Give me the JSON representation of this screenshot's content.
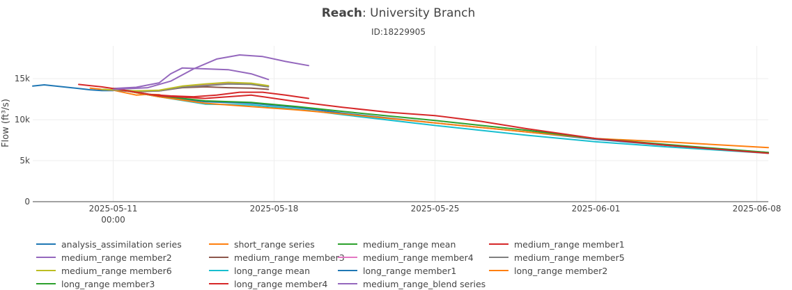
{
  "chart_data": {
    "type": "line",
    "title_bold": "Reach",
    "title_rest": ": University Branch",
    "subtitle": "ID:18229905",
    "ylabel": "Flow (ft³/s)",
    "ylim": [
      0,
      19000
    ],
    "xlim": [
      "2025-05-07T12:00",
      "2025-06-08T12:00"
    ],
    "yticks": [
      {
        "value": 0,
        "label": "0"
      },
      {
        "value": 5000,
        "label": "5k"
      },
      {
        "value": 10000,
        "label": "10k"
      },
      {
        "value": 15000,
        "label": "15k"
      }
    ],
    "xticks": [
      {
        "value": "2025-05-11T00:00",
        "label": "2025-05-11",
        "label2": "00:00"
      },
      {
        "value": "2025-05-18T00:00",
        "label": "2025-05-18",
        "label2": ""
      },
      {
        "value": "2025-05-25T00:00",
        "label": "2025-05-25",
        "label2": ""
      },
      {
        "value": "2025-06-01T00:00",
        "label": "2025-06-01",
        "label2": ""
      },
      {
        "value": "2025-06-08T00:00",
        "label": "2025-06-08",
        "label2": ""
      }
    ],
    "grid": true,
    "legend_position": "bottom",
    "series": [
      {
        "name": "analysis_assimilation series",
        "color": "#1f77b4",
        "x": [
          "2025-05-07T12:00",
          "2025-05-08T00:00",
          "2025-05-08T12:00",
          "2025-05-09T00:00",
          "2025-05-09T12:00",
          "2025-05-10T00:00",
          "2025-05-10T12:00",
          "2025-05-11T00:00"
        ],
        "y": [
          14100,
          14250,
          14100,
          13950,
          13800,
          13650,
          13550,
          13550
        ]
      },
      {
        "name": "short_range series",
        "color": "#ff7f0e",
        "x": [
          "2025-05-10T00:00",
          "2025-05-10T12:00",
          "2025-05-11T00:00",
          "2025-05-11T12:00",
          "2025-05-12T00:00",
          "2025-05-12T12:00",
          "2025-05-13T00:00",
          "2025-05-13T12:00"
        ],
        "y": [
          13850,
          13700,
          13600,
          13300,
          13000,
          13100,
          13050,
          12600
        ]
      },
      {
        "name": "medium_range mean",
        "color": "#2ca02c",
        "x": [
          "2025-05-10T12:00",
          "2025-05-12T00:00",
          "2025-05-13T00:00",
          "2025-05-14T00:00",
          "2025-05-15T00:00",
          "2025-05-16T00:00",
          "2025-05-17T00:00",
          "2025-05-17T18:00"
        ],
        "y": [
          13700,
          13500,
          13550,
          14000,
          14300,
          14500,
          14400,
          14100
        ]
      },
      {
        "name": "medium_range member1",
        "color": "#d62728",
        "x": [
          "2025-05-09T12:00",
          "2025-05-10T12:00",
          "2025-05-11T12:00",
          "2025-05-12T12:00",
          "2025-05-13T12:00",
          "2025-05-14T12:00",
          "2025-05-15T12:00",
          "2025-05-16T12:00",
          "2025-05-17T12:00",
          "2025-05-18T12:00",
          "2025-05-19T12:00"
        ],
        "y": [
          14300,
          14000,
          13600,
          13100,
          12900,
          12800,
          13000,
          13350,
          13350,
          13000,
          12600
        ]
      },
      {
        "name": "medium_range member2",
        "color": "#9467bd",
        "x": [
          "2025-05-11T00:00",
          "2025-05-12T00:00",
          "2025-05-13T00:00",
          "2025-05-13T12:00",
          "2025-05-14T00:00",
          "2025-05-15T00:00",
          "2025-05-16T00:00",
          "2025-05-17T00:00",
          "2025-05-17T18:00"
        ],
        "y": [
          13800,
          13950,
          14500,
          15600,
          16300,
          16200,
          16100,
          15600,
          14900
        ]
      },
      {
        "name": "medium_range member3",
        "color": "#8c564b",
        "x": [
          "2025-05-10T12:00",
          "2025-05-12T00:00",
          "2025-05-13T00:00",
          "2025-05-14T00:00",
          "2025-05-15T00:00",
          "2025-05-16T00:00",
          "2025-05-17T00:00",
          "2025-05-17T18:00"
        ],
        "y": [
          13700,
          13400,
          13500,
          13900,
          14000,
          13900,
          13850,
          13700
        ]
      },
      {
        "name": "medium_range member4",
        "color": "#e377c2",
        "x": [
          "2025-05-10T12:00",
          "2025-05-12T00:00",
          "2025-05-13T00:00",
          "2025-05-14T00:00",
          "2025-05-15T00:00",
          "2025-05-16T00:00",
          "2025-05-17T00:00",
          "2025-05-17T18:00"
        ],
        "y": [
          13700,
          13450,
          13550,
          14050,
          14250,
          14450,
          14350,
          14050
        ]
      },
      {
        "name": "medium_range member5",
        "color": "#7f7f7f",
        "x": [
          "2025-05-10T12:00",
          "2025-05-12T00:00",
          "2025-05-13T00:00",
          "2025-05-14T00:00",
          "2025-05-15T00:00",
          "2025-05-16T00:00",
          "2025-05-17T00:00",
          "2025-05-17T18:00"
        ],
        "y": [
          13700,
          13450,
          13500,
          13950,
          14150,
          14350,
          14300,
          14000
        ]
      },
      {
        "name": "medium_range member6",
        "color": "#bcbd22",
        "x": [
          "2025-05-10T12:00",
          "2025-05-12T00:00",
          "2025-05-13T00:00",
          "2025-05-14T00:00",
          "2025-05-15T00:00",
          "2025-05-16T00:00",
          "2025-05-17T00:00",
          "2025-05-17T18:00"
        ],
        "y": [
          13700,
          13500,
          13600,
          14100,
          14350,
          14550,
          14450,
          14150
        ]
      },
      {
        "name": "long_range mean",
        "color": "#17becf",
        "x": [
          "2025-05-11T00:00",
          "2025-05-13T00:00",
          "2025-05-15T00:00",
          "2025-05-17T00:00",
          "2025-05-19T00:00",
          "2025-05-21T00:00",
          "2025-05-25T00:00",
          "2025-05-29T00:00",
          "2025-06-01T00:00",
          "2025-06-04T00:00",
          "2025-06-08T12:00"
        ],
        "y": [
          13800,
          12800,
          11900,
          11800,
          11300,
          10600,
          9300,
          8100,
          7300,
          6700,
          5900
        ]
      },
      {
        "name": "long_range member1",
        "color": "#1f77b4",
        "x": [
          "2025-05-11T00:00",
          "2025-05-13T00:00",
          "2025-05-15T00:00",
          "2025-05-17T00:00",
          "2025-05-19T00:00",
          "2025-05-21T00:00",
          "2025-05-25T00:00",
          "2025-05-29T00:00",
          "2025-06-01T00:00",
          "2025-06-04T00:00",
          "2025-06-08T12:00"
        ],
        "y": [
          13800,
          12800,
          12200,
          12000,
          11500,
          10800,
          9600,
          8500,
          7600,
          6900,
          6000
        ]
      },
      {
        "name": "long_range member2",
        "color": "#ff7f0e",
        "x": [
          "2025-05-11T00:00",
          "2025-05-13T00:00",
          "2025-05-15T00:00",
          "2025-05-17T00:00",
          "2025-05-19T00:00",
          "2025-05-21T00:00",
          "2025-05-25T00:00",
          "2025-05-29T00:00",
          "2025-06-01T00:00",
          "2025-06-04T00:00",
          "2025-06-08T12:00"
        ],
        "y": [
          13800,
          12800,
          12000,
          11600,
          11200,
          10700,
          9600,
          8500,
          7700,
          7300,
          6600
        ]
      },
      {
        "name": "long_range member3",
        "color": "#2ca02c",
        "x": [
          "2025-05-11T00:00",
          "2025-05-13T00:00",
          "2025-05-15T00:00",
          "2025-05-17T00:00",
          "2025-05-19T00:00",
          "2025-05-21T00:00",
          "2025-05-25T00:00",
          "2025-05-29T00:00",
          "2025-06-01T00:00",
          "2025-06-04T00:00",
          "2025-06-08T12:00"
        ],
        "y": [
          13800,
          12900,
          12300,
          12100,
          11600,
          11000,
          9900,
          8700,
          7700,
          7000,
          6000
        ]
      },
      {
        "name": "long_range member4",
        "color": "#d62728",
        "x": [
          "2025-05-11T00:00",
          "2025-05-13T00:00",
          "2025-05-15T00:00",
          "2025-05-17T00:00",
          "2025-05-19T00:00",
          "2025-05-21T00:00",
          "2025-05-23T00:00",
          "2025-05-25T00:00",
          "2025-05-27T00:00",
          "2025-05-29T00:00",
          "2025-06-01T00:00",
          "2025-06-04T00:00",
          "2025-06-08T12:00"
        ],
        "y": [
          13800,
          12900,
          12600,
          13000,
          12200,
          11500,
          10900,
          10500,
          9800,
          8900,
          7700,
          6900,
          5900
        ]
      },
      {
        "name": "medium_range_blend series",
        "color": "#9467bd",
        "x": [
          "2025-05-11T00:00",
          "2025-05-12T12:00",
          "2025-05-13T12:00",
          "2025-05-14T12:00",
          "2025-05-15T12:00",
          "2025-05-16T12:00",
          "2025-05-17T12:00",
          "2025-05-18T12:00",
          "2025-05-19T12:00"
        ],
        "y": [
          13700,
          13900,
          14700,
          16200,
          17400,
          17900,
          17700,
          17100,
          16600
        ]
      }
    ]
  }
}
